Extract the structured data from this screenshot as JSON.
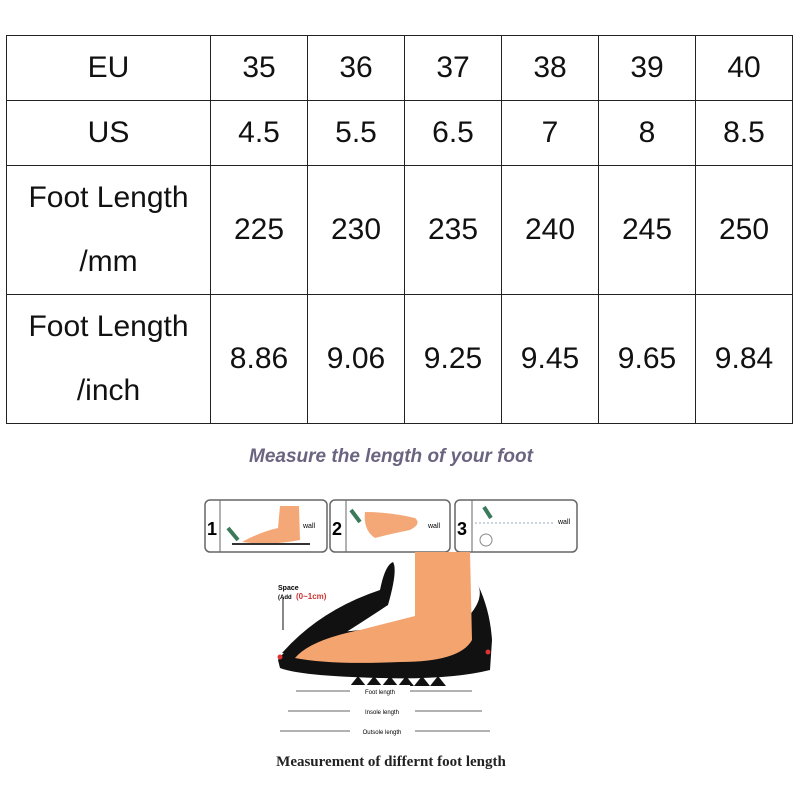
{
  "size_table": {
    "rows": [
      {
        "label": [
          "EU"
        ],
        "values": [
          "35",
          "36",
          "37",
          "38",
          "39",
          "40"
        ]
      },
      {
        "label": [
          "US"
        ],
        "values": [
          "4.5",
          "5.5",
          "6.5",
          "7",
          "8",
          "8.5"
        ]
      },
      {
        "label": [
          "Foot Length",
          "/mm"
        ],
        "values": [
          "225",
          "230",
          "235",
          "240",
          "245",
          "250"
        ]
      },
      {
        "label": [
          "Foot Length",
          "/inch"
        ],
        "values": [
          "8.86",
          "9.06",
          "9.25",
          "9.45",
          "9.65",
          "9.84"
        ]
      }
    ]
  },
  "subtitle": "Measure the length of your foot",
  "steps": [
    {
      "number": "1",
      "label": "wall"
    },
    {
      "number": "2",
      "label": "wall"
    },
    {
      "number": "3",
      "label": "wall"
    }
  ],
  "diagram": {
    "space_label": "Space",
    "space_add": "(Add",
    "space_range": "(0~1cm)",
    "foot_length": "Foot length",
    "insole_length": "Insole length",
    "outsole_length": "Outsole length"
  },
  "caption": "Measurement of differnt foot length"
}
